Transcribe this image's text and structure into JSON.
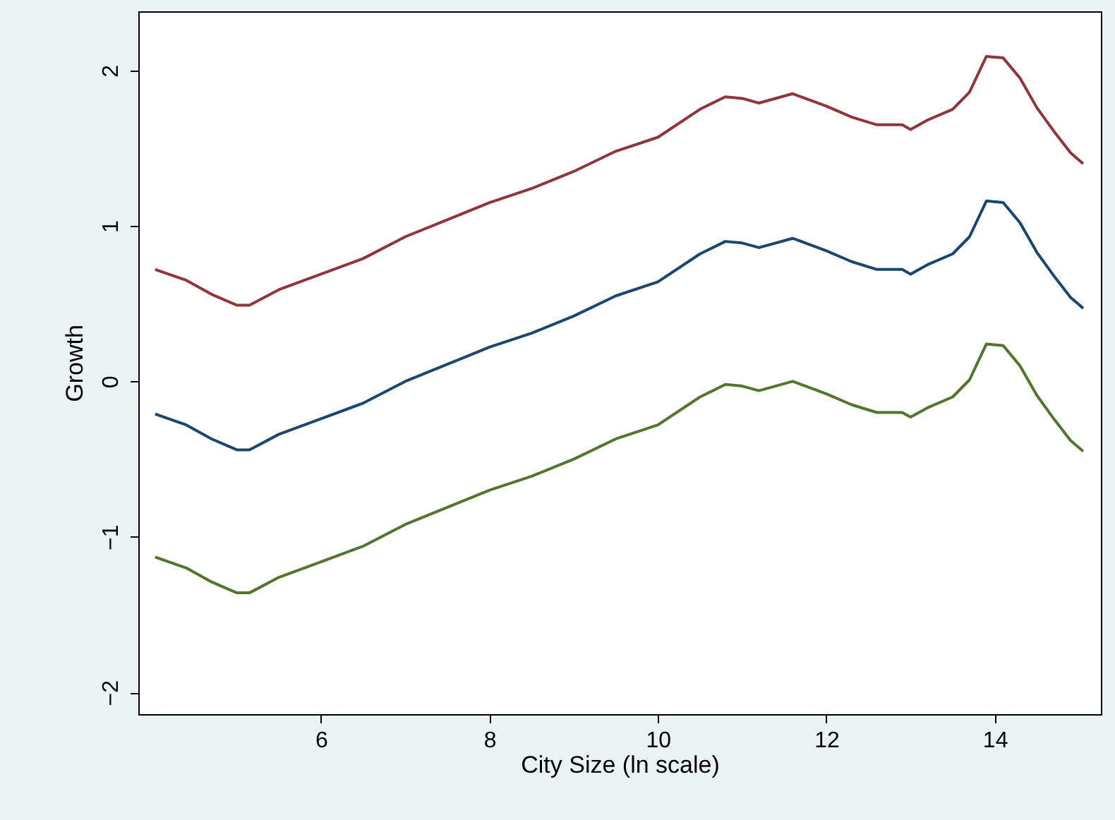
{
  "chart_data": {
    "type": "line",
    "xlabel": "City Size (ln scale)",
    "ylabel": "Growth",
    "x": [
      4.03,
      4.4,
      4.7,
      5.0,
      5.15,
      5.5,
      6,
      6.5,
      7,
      7.5,
      8,
      8.5,
      9,
      9.5,
      10,
      10.5,
      10.8,
      11,
      11.2,
      11.6,
      12,
      12.3,
      12.6,
      12.9,
      13.0,
      13.2,
      13.5,
      13.7,
      13.9,
      14.1,
      14.3,
      14.5,
      14.7,
      14.9,
      15.05
    ],
    "series": [
      {
        "color": "#90353b",
        "values": [
          0.72,
          0.65,
          0.56,
          0.49,
          0.49,
          0.59,
          0.69,
          0.79,
          0.93,
          1.04,
          1.15,
          1.24,
          1.35,
          1.48,
          1.57,
          1.75,
          1.83,
          1.82,
          1.79,
          1.85,
          1.77,
          1.7,
          1.65,
          1.65,
          1.62,
          1.68,
          1.75,
          1.86,
          2.09,
          2.08,
          1.95,
          1.76,
          1.61,
          1.47,
          1.4
        ]
      },
      {
        "color": "#1a476f",
        "values": [
          -0.21,
          -0.28,
          -0.37,
          -0.44,
          -0.44,
          -0.34,
          -0.24,
          -0.14,
          0.0,
          0.11,
          0.22,
          0.31,
          0.42,
          0.55,
          0.64,
          0.82,
          0.9,
          0.89,
          0.86,
          0.92,
          0.84,
          0.77,
          0.72,
          0.72,
          0.69,
          0.75,
          0.82,
          0.93,
          1.16,
          1.15,
          1.02,
          0.83,
          0.68,
          0.54,
          0.47
        ]
      },
      {
        "color": "#55752f",
        "values": [
          -1.13,
          -1.2,
          -1.29,
          -1.36,
          -1.36,
          -1.26,
          -1.16,
          -1.06,
          -0.92,
          -0.81,
          -0.7,
          -0.61,
          -0.5,
          -0.37,
          -0.28,
          -0.1,
          -0.02,
          -0.03,
          -0.06,
          0.0,
          -0.08,
          -0.15,
          -0.2,
          -0.2,
          -0.23,
          -0.17,
          -0.1,
          0.01,
          0.24,
          0.23,
          0.1,
          -0.09,
          -0.24,
          -0.38,
          -0.45
        ]
      }
    ],
    "xlim": [
      3.83,
      15.26
    ],
    "ylim": [
      -2.14,
      2.38
    ],
    "xticks": [
      6,
      8,
      10,
      12,
      14
    ],
    "yticks": [
      -2,
      -1,
      0,
      1,
      2
    ],
    "line_style": "solid"
  }
}
